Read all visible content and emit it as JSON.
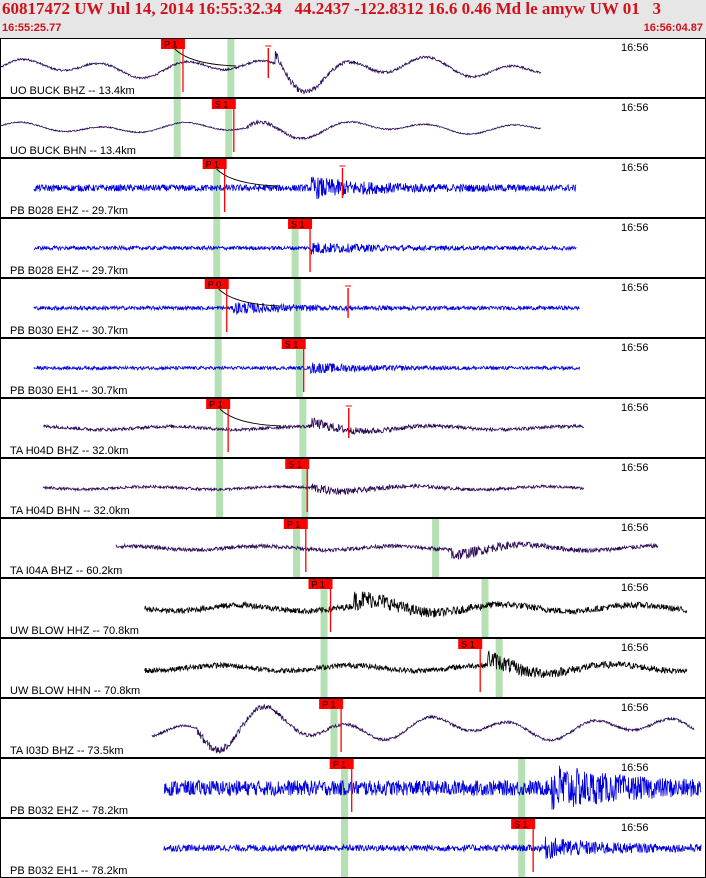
{
  "header": {
    "title": "60817472 UW Jul 14, 2014 16:55:32.34   44.2437 -122.8312 16.6 0.46 Md le amyw UW 01   3",
    "time_start": "16:55:25.77",
    "time_end": "16:56:04.87"
  },
  "colors": {
    "header_text": "#d0101a",
    "pick_flag": "#ff0000",
    "window_band": "#b4e0b4",
    "trace_blue": "#0000e0",
    "trace_purple": "#2a0a55",
    "trace_black": "#000000"
  },
  "panels": [
    {
      "label": "UO BUCK BHZ -- 13.4km",
      "time_label": "16:56",
      "pick": "P 1",
      "pick_t": 0.228,
      "band_t": [
        0.251,
        0.327
      ],
      "color": "trace_purple",
      "style": "lowfreq",
      "start": 0.0,
      "end": 0.766,
      "amp": 0.28,
      "burst_t": 0.39,
      "amp_mark_t": 0.38,
      "curve": true,
      "extra_pick": null
    },
    {
      "label": "UO BUCK BHN -- 13.4km",
      "time_label": "16:56",
      "pick": "S 1",
      "pick_t": 0.3,
      "band_t": [
        0.251,
        0.324
      ],
      "color": "trace_purple",
      "style": "lowfreq",
      "start": 0.0,
      "end": 0.766,
      "amp": 0.16,
      "burst_t": 0.35,
      "amp_mark_t": null,
      "curve": false,
      "extra_pick": null
    },
    {
      "label": "PB B028 EHZ -- 29.7km",
      "time_label": "16:56",
      "pick": "P 1",
      "pick_t": 0.287,
      "band_t": [
        0.307,
        null
      ],
      "color": "trace_blue",
      "style": "hf",
      "start": 0.048,
      "end": 0.816,
      "amp": 0.14,
      "burst_t": 0.44,
      "amp_mark_t": 0.485,
      "curve": true,
      "extra_pick": null
    },
    {
      "label": "PB B028 EHZ -- 29.7km",
      "time_label": "16:56",
      "pick": "S 1",
      "pick_t": 0.408,
      "band_t": [
        0.307,
        0.418
      ],
      "color": "trace_blue",
      "style": "hf",
      "start": 0.048,
      "end": 0.816,
      "amp": 0.08,
      "burst_t": 0.44,
      "amp_mark_t": null,
      "curve": false,
      "extra_pick": null
    },
    {
      "label": "PB B030 EHZ -- 30.7km",
      "time_label": "16:56",
      "pick": "P 0",
      "pick_t": 0.29,
      "band_t": [
        0.309,
        0.421
      ],
      "color": "trace_blue",
      "style": "hf",
      "start": 0.048,
      "end": 0.821,
      "amp": 0.08,
      "burst_t": 0.33,
      "amp_mark_t": 0.493,
      "curve": true,
      "extra_pick": null
    },
    {
      "label": "PB B030 EH1 -- 30.7km",
      "time_label": "16:56",
      "pick": "S 1",
      "pick_t": 0.399,
      "band_t": [
        0.309,
        0.424
      ],
      "color": "trace_blue",
      "style": "hf",
      "start": 0.048,
      "end": 0.821,
      "amp": 0.07,
      "burst_t": 0.44,
      "amp_mark_t": null,
      "curve": false,
      "extra_pick": null
    },
    {
      "label": "TA H04D BHZ -- 32.0km",
      "time_label": "16:56",
      "pick": "P 1",
      "pick_t": 0.292,
      "band_t": [
        0.311,
        0.429
      ],
      "color": "trace_purple",
      "style": "mid",
      "start": 0.061,
      "end": 0.827,
      "amp": 0.12,
      "burst_t": 0.44,
      "amp_mark_t": 0.494,
      "curve": true,
      "extra_pick": null
    },
    {
      "label": "TA H04D BHN -- 32.0km",
      "time_label": "16:56",
      "pick": "S 1",
      "pick_t": 0.404,
      "band_t": [
        0.311,
        0.432
      ],
      "color": "trace_purple",
      "style": "mid",
      "start": 0.061,
      "end": 0.827,
      "amp": 0.1,
      "burst_t": 0.44,
      "amp_mark_t": null,
      "curve": false,
      "extra_pick": null
    },
    {
      "label": "TA I04A BHZ -- 60.2km",
      "time_label": "16:56",
      "pick": "P 1",
      "pick_t": 0.402,
      "band_t": [
        0.42,
        0.617
      ],
      "color": "trace_purple",
      "style": "mid",
      "start": 0.164,
      "end": 0.932,
      "amp": 0.14,
      "burst_t": 0.64,
      "amp_mark_t": null,
      "curve": false,
      "extra_pick": null
    },
    {
      "label": "UW BLOW HHZ -- 70.8km",
      "time_label": "16:56",
      "pick": "P 1",
      "pick_t": 0.437,
      "band_t": [
        0.459,
        0.687
      ],
      "color": "trace_black",
      "style": "mid",
      "start": 0.205,
      "end": 0.973,
      "amp": 0.22,
      "burst_t": 0.5,
      "amp_mark_t": null,
      "curve": false,
      "extra_pick": null
    },
    {
      "label": "UW BLOW HHN -- 70.8km",
      "time_label": "16:56",
      "pick": "S 1",
      "pick_t": 0.649,
      "band_t": [
        0.459,
        0.707
      ],
      "color": "trace_black",
      "style": "mid",
      "start": 0.205,
      "end": 0.973,
      "amp": 0.2,
      "burst_t": 0.69,
      "amp_mark_t": null,
      "curve": false,
      "extra_pick": null
    },
    {
      "label": "TA I03D BHZ -- 73.5km",
      "time_label": "16:56",
      "pick": "P 1",
      "pick_t": 0.452,
      "band_t": [
        0.473,
        null
      ],
      "color": "trace_purple",
      "style": "lowfreq",
      "start": 0.215,
      "end": 0.983,
      "amp": 0.34,
      "burst_t": 0.28,
      "amp_mark_t": null,
      "curve": false,
      "extra_pick": null
    },
    {
      "label": "PB B032 EHZ -- 78.2km",
      "time_label": "16:56",
      "pick": "P 1",
      "pick_t": 0.467,
      "band_t": [
        0.488,
        0.739
      ],
      "color": "trace_blue",
      "style": "hf",
      "start": 0.232,
      "end": 0.993,
      "amp": 0.32,
      "burst_t": 0.78,
      "amp_mark_t": null,
      "curve": false,
      "extra_pick": null
    },
    {
      "label": "PB B032 EH1 -- 78.2km",
      "time_label": "16:56",
      "pick": "S 1",
      "pick_t": 0.724,
      "band_t": [
        0.488,
        0.739
      ],
      "color": "trace_blue",
      "style": "hf",
      "start": 0.232,
      "end": 0.993,
      "amp": 0.14,
      "burst_t": 0.77,
      "amp_mark_t": null,
      "curve": false,
      "extra_pick": null
    }
  ]
}
